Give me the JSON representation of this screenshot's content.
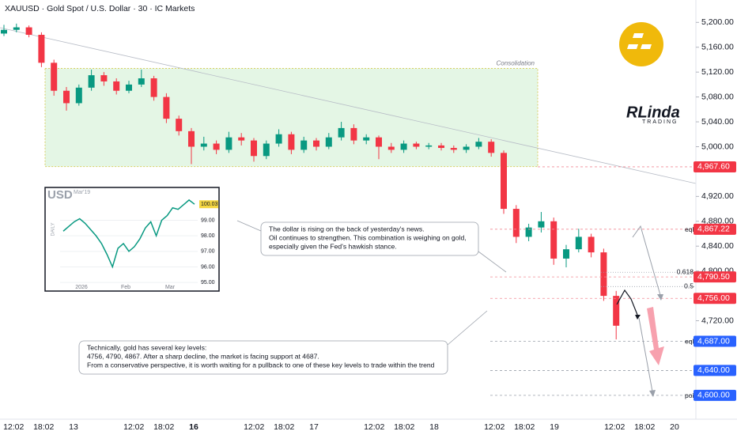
{
  "header": {
    "title": "XAUUSD · Gold Spot / U.S. Dollar · 30 · IC Markets",
    "brand": "RLinda",
    "brand_sub": "TRADING"
  },
  "chart_data": [
    {
      "type": "candlestick",
      "up_color": "#089981",
      "down_color": "#f23645",
      "ohlc": [
        [
          5182,
          5196,
          5178,
          5188
        ],
        [
          5188,
          5198,
          5184,
          5192
        ],
        [
          5192,
          5195,
          5176,
          5180
        ],
        [
          5180,
          5184,
          5128,
          5135
        ],
        [
          5135,
          5140,
          5082,
          5090
        ],
        [
          5090,
          5096,
          5058,
          5070
        ],
        [
          5070,
          5100,
          5066,
          5095
        ],
        [
          5095,
          5124,
          5090,
          5115
        ],
        [
          5115,
          5120,
          5098,
          5105
        ],
        [
          5105,
          5110,
          5084,
          5090
        ],
        [
          5090,
          5106,
          5086,
          5100
        ],
        [
          5100,
          5124,
          5096,
          5110
        ],
        [
          5110,
          5114,
          5074,
          5080
        ],
        [
          5080,
          5086,
          5038,
          5045
        ],
        [
          5045,
          5050,
          5018,
          5025
        ],
        [
          5025,
          5030,
          4972,
          5000
        ],
        [
          5000,
          5016,
          4994,
          5005
        ],
        [
          5005,
          5010,
          4988,
          4995
        ],
        [
          4995,
          5024,
          4990,
          5015
        ],
        [
          5015,
          5022,
          5002,
          5010
        ],
        [
          5010,
          5014,
          4976,
          4985
        ],
        [
          4985,
          5010,
          4980,
          5005
        ],
        [
          5005,
          5028,
          5000,
          5020
        ],
        [
          5020,
          5024,
          4988,
          4995
        ],
        [
          4995,
          5016,
          4990,
          5010
        ],
        [
          5010,
          5014,
          4994,
          5000
        ],
        [
          5000,
          5022,
          4996,
          5015
        ],
        [
          5015,
          5040,
          5010,
          5030
        ],
        [
          5030,
          5036,
          5004,
          5010
        ],
        [
          5010,
          5020,
          5004,
          5015
        ],
        [
          5015,
          5018,
          4980,
          5000
        ],
        [
          5000,
          5006,
          4990,
          4995
        ],
        [
          4995,
          5010,
          4990,
          5005
        ],
        [
          5005,
          5008,
          4996,
          5000
        ],
        [
          5000,
          5006,
          4996,
          5002
        ],
        [
          5002,
          5006,
          4994,
          4998
        ],
        [
          4998,
          5002,
          4990,
          4995
        ],
        [
          4995,
          5004,
          4990,
          5000
        ],
        [
          5000,
          5014,
          4996,
          5008
        ],
        [
          5008,
          5012,
          4984,
          4990
        ],
        [
          4990,
          4994,
          4892,
          4900
        ],
        [
          4900,
          4906,
          4845,
          4855
        ],
        [
          4855,
          4876,
          4848,
          4870
        ],
        [
          4870,
          4895,
          4862,
          4880
        ],
        [
          4880,
          4886,
          4810,
          4820
        ],
        [
          4820,
          4842,
          4806,
          4835
        ],
        [
          4835,
          4868,
          4830,
          4855
        ],
        [
          4855,
          4860,
          4822,
          4830
        ],
        [
          4830,
          4836,
          4752,
          4760
        ],
        [
          4760,
          4768,
          4690,
          4712
        ]
      ],
      "ylim": [
        4568,
        5236
      ],
      "yticks": [
        {
          "value": 5200,
          "label": "5,200.00"
        },
        {
          "value": 5160,
          "label": "5,160.00"
        },
        {
          "value": 5120,
          "label": "5,120.00"
        },
        {
          "value": 5080,
          "label": "5,080.00"
        },
        {
          "value": 5040,
          "label": "5,040.00"
        },
        {
          "value": 5000,
          "label": "5,000.00"
        },
        {
          "value": 4920,
          "label": "4,920.00"
        },
        {
          "value": 4880,
          "label": "4,880.00"
        },
        {
          "value": 4840,
          "label": "4,840.00"
        },
        {
          "value": 4800,
          "label": "4,800.00"
        },
        {
          "value": 4720,
          "label": "4,720.00"
        }
      ],
      "x_labels": [
        "12:02",
        "18:02",
        "13",
        "12:02",
        "18:02",
        "16",
        "12:02",
        "18:02",
        "17",
        "12:02",
        "18:02",
        "18",
        "12:02",
        "18:02",
        "19",
        "12:02",
        "18:02",
        "20"
      ],
      "price_levels": [
        {
          "value": 4967.6,
          "label": "4,967.60",
          "color": "#f23645"
        },
        {
          "value": 4867.22,
          "label": "4,867.22",
          "color": "#f23645",
          "note": "eqh"
        },
        {
          "value": 4790.5,
          "label": "4,790.50",
          "color": "#f23645"
        },
        {
          "value": 4756,
          "label": "4,756.00",
          "color": "#f23645"
        },
        {
          "value": 4687,
          "label": "4,687.00",
          "color": "#2962ff",
          "note": "eql"
        },
        {
          "value": 4640,
          "label": "4,640.00",
          "color": "#2962ff"
        },
        {
          "value": 4600,
          "label": "4,600.00",
          "color": "#2962ff",
          "note": "poi"
        }
      ],
      "fib_levels": [
        {
          "value": 4798,
          "label": "0.618"
        },
        {
          "value": 4775,
          "label": "0.5"
        }
      ],
      "zone": {
        "label": "Consolidation",
        "top": 5126,
        "bottom": 4968
      },
      "annotations": [
        {
          "lines": [
            "The dollar is rising on the back of yesterday's news.",
            "Oil continues to strengthen. This combination is weighing on gold,",
            "especially given the Fed's hawkish stance."
          ]
        },
        {
          "lines": [
            "Technically, gold has several key levels:",
            "4756, 4790, 4867. After a sharp decline, the market is facing support at 4687.",
            "From a conservative perspective, it is worth waiting for a pullback to one of these key levels to trade within the trend"
          ]
        }
      ]
    },
    {
      "type": "line",
      "title": "USD",
      "subtitle": "Mar'19",
      "side_label": "DAILY",
      "color": "#089981",
      "values": [
        98.3,
        98.6,
        98.9,
        99.1,
        98.8,
        98.4,
        98.0,
        97.5,
        96.8,
        96.0,
        97.2,
        97.5,
        97.0,
        97.3,
        97.8,
        98.5,
        98.9,
        98.0,
        99.0,
        99.3,
        99.8,
        99.7,
        100.0,
        100.3,
        100.03
      ],
      "last_value": 100.03,
      "ylim": [
        94.5,
        100.6
      ],
      "yticks": [
        {
          "value": 99,
          "label": "99.00"
        },
        {
          "value": 98,
          "label": "98.00"
        },
        {
          "value": 97,
          "label": "97.00"
        },
        {
          "value": 96,
          "label": "96.00"
        },
        {
          "value": 95,
          "label": "95.00"
        }
      ],
      "x_labels": [
        "2026",
        "Feb",
        "Mar"
      ]
    }
  ]
}
